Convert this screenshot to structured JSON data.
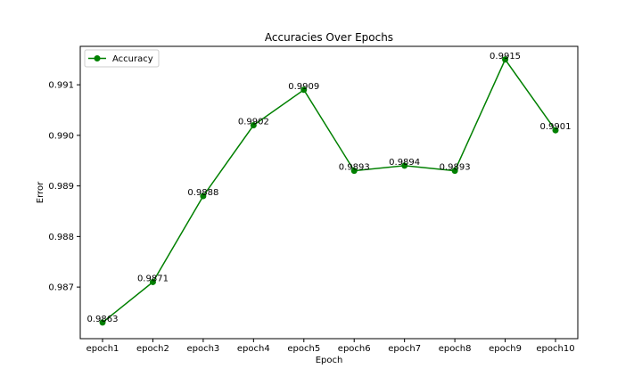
{
  "chart_data": {
    "type": "line",
    "title": "Accuracies Over Epochs",
    "xlabel": "Epoch",
    "ylabel": "Error",
    "categories": [
      "epoch1",
      "epoch2",
      "epoch3",
      "epoch4",
      "epoch5",
      "epoch6",
      "epoch7",
      "epoch8",
      "epoch9",
      "epoch10"
    ],
    "series": [
      {
        "name": "Accuracy",
        "color": "#008000",
        "marker": "circle",
        "values": [
          0.9863,
          0.9871,
          0.9888,
          0.9902,
          0.9909,
          0.9893,
          0.9894,
          0.9893,
          0.9915,
          0.9901
        ],
        "data_labels": [
          "0.9863",
          "0.9871",
          "0.9888",
          "0.9902",
          "0.9909",
          "0.9893",
          "0.9894",
          "0.9893",
          "0.9915",
          "0.9901"
        ]
      }
    ],
    "ylim": [
      0.98598,
      0.99176
    ],
    "yticks": [
      0.987,
      0.988,
      0.989,
      0.99,
      0.991
    ],
    "ytick_labels": [
      "0.987",
      "0.988",
      "0.989",
      "0.990",
      "0.991"
    ],
    "grid": false,
    "legend_position": "top-left"
  }
}
